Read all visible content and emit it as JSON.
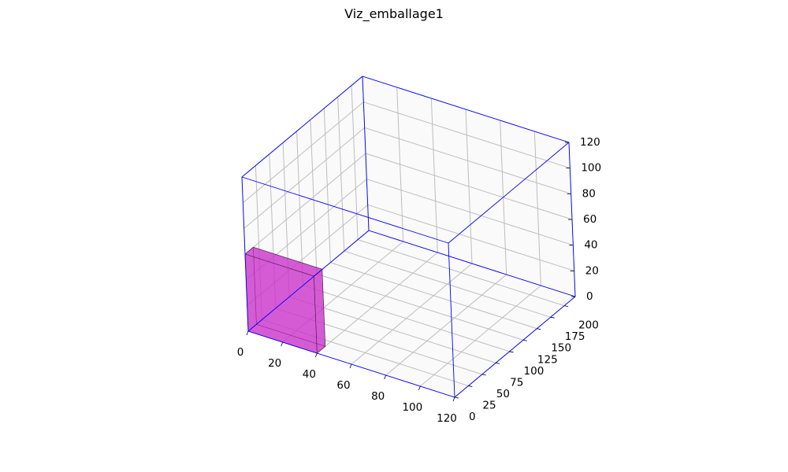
{
  "chart_data": {
    "type": "3d-box",
    "title": "Viz_emballage1",
    "xlabel": "",
    "ylabel": "",
    "zlabel": "",
    "xlim": [
      0,
      120
    ],
    "ylim": [
      0,
      220
    ],
    "zlim": [
      0,
      120
    ],
    "x_ticks": [
      "0",
      "20",
      "40",
      "60",
      "80",
      "100",
      "120"
    ],
    "y_ticks": [
      "0",
      "25",
      "50",
      "75",
      "100",
      "125",
      "150",
      "175",
      "200"
    ],
    "z_ticks": [
      "0",
      "20",
      "40",
      "60",
      "80",
      "100",
      "120"
    ],
    "grid": true,
    "container": {
      "x": [
        0,
        120
      ],
      "y": [
        0,
        220
      ],
      "z": [
        0,
        120
      ],
      "edge_color": "#0000ff"
    },
    "boxes": [
      {
        "x": [
          0,
          40
        ],
        "y": [
          0,
          15
        ],
        "z": [
          0,
          60
        ],
        "color": "#cc33cc"
      }
    ]
  }
}
